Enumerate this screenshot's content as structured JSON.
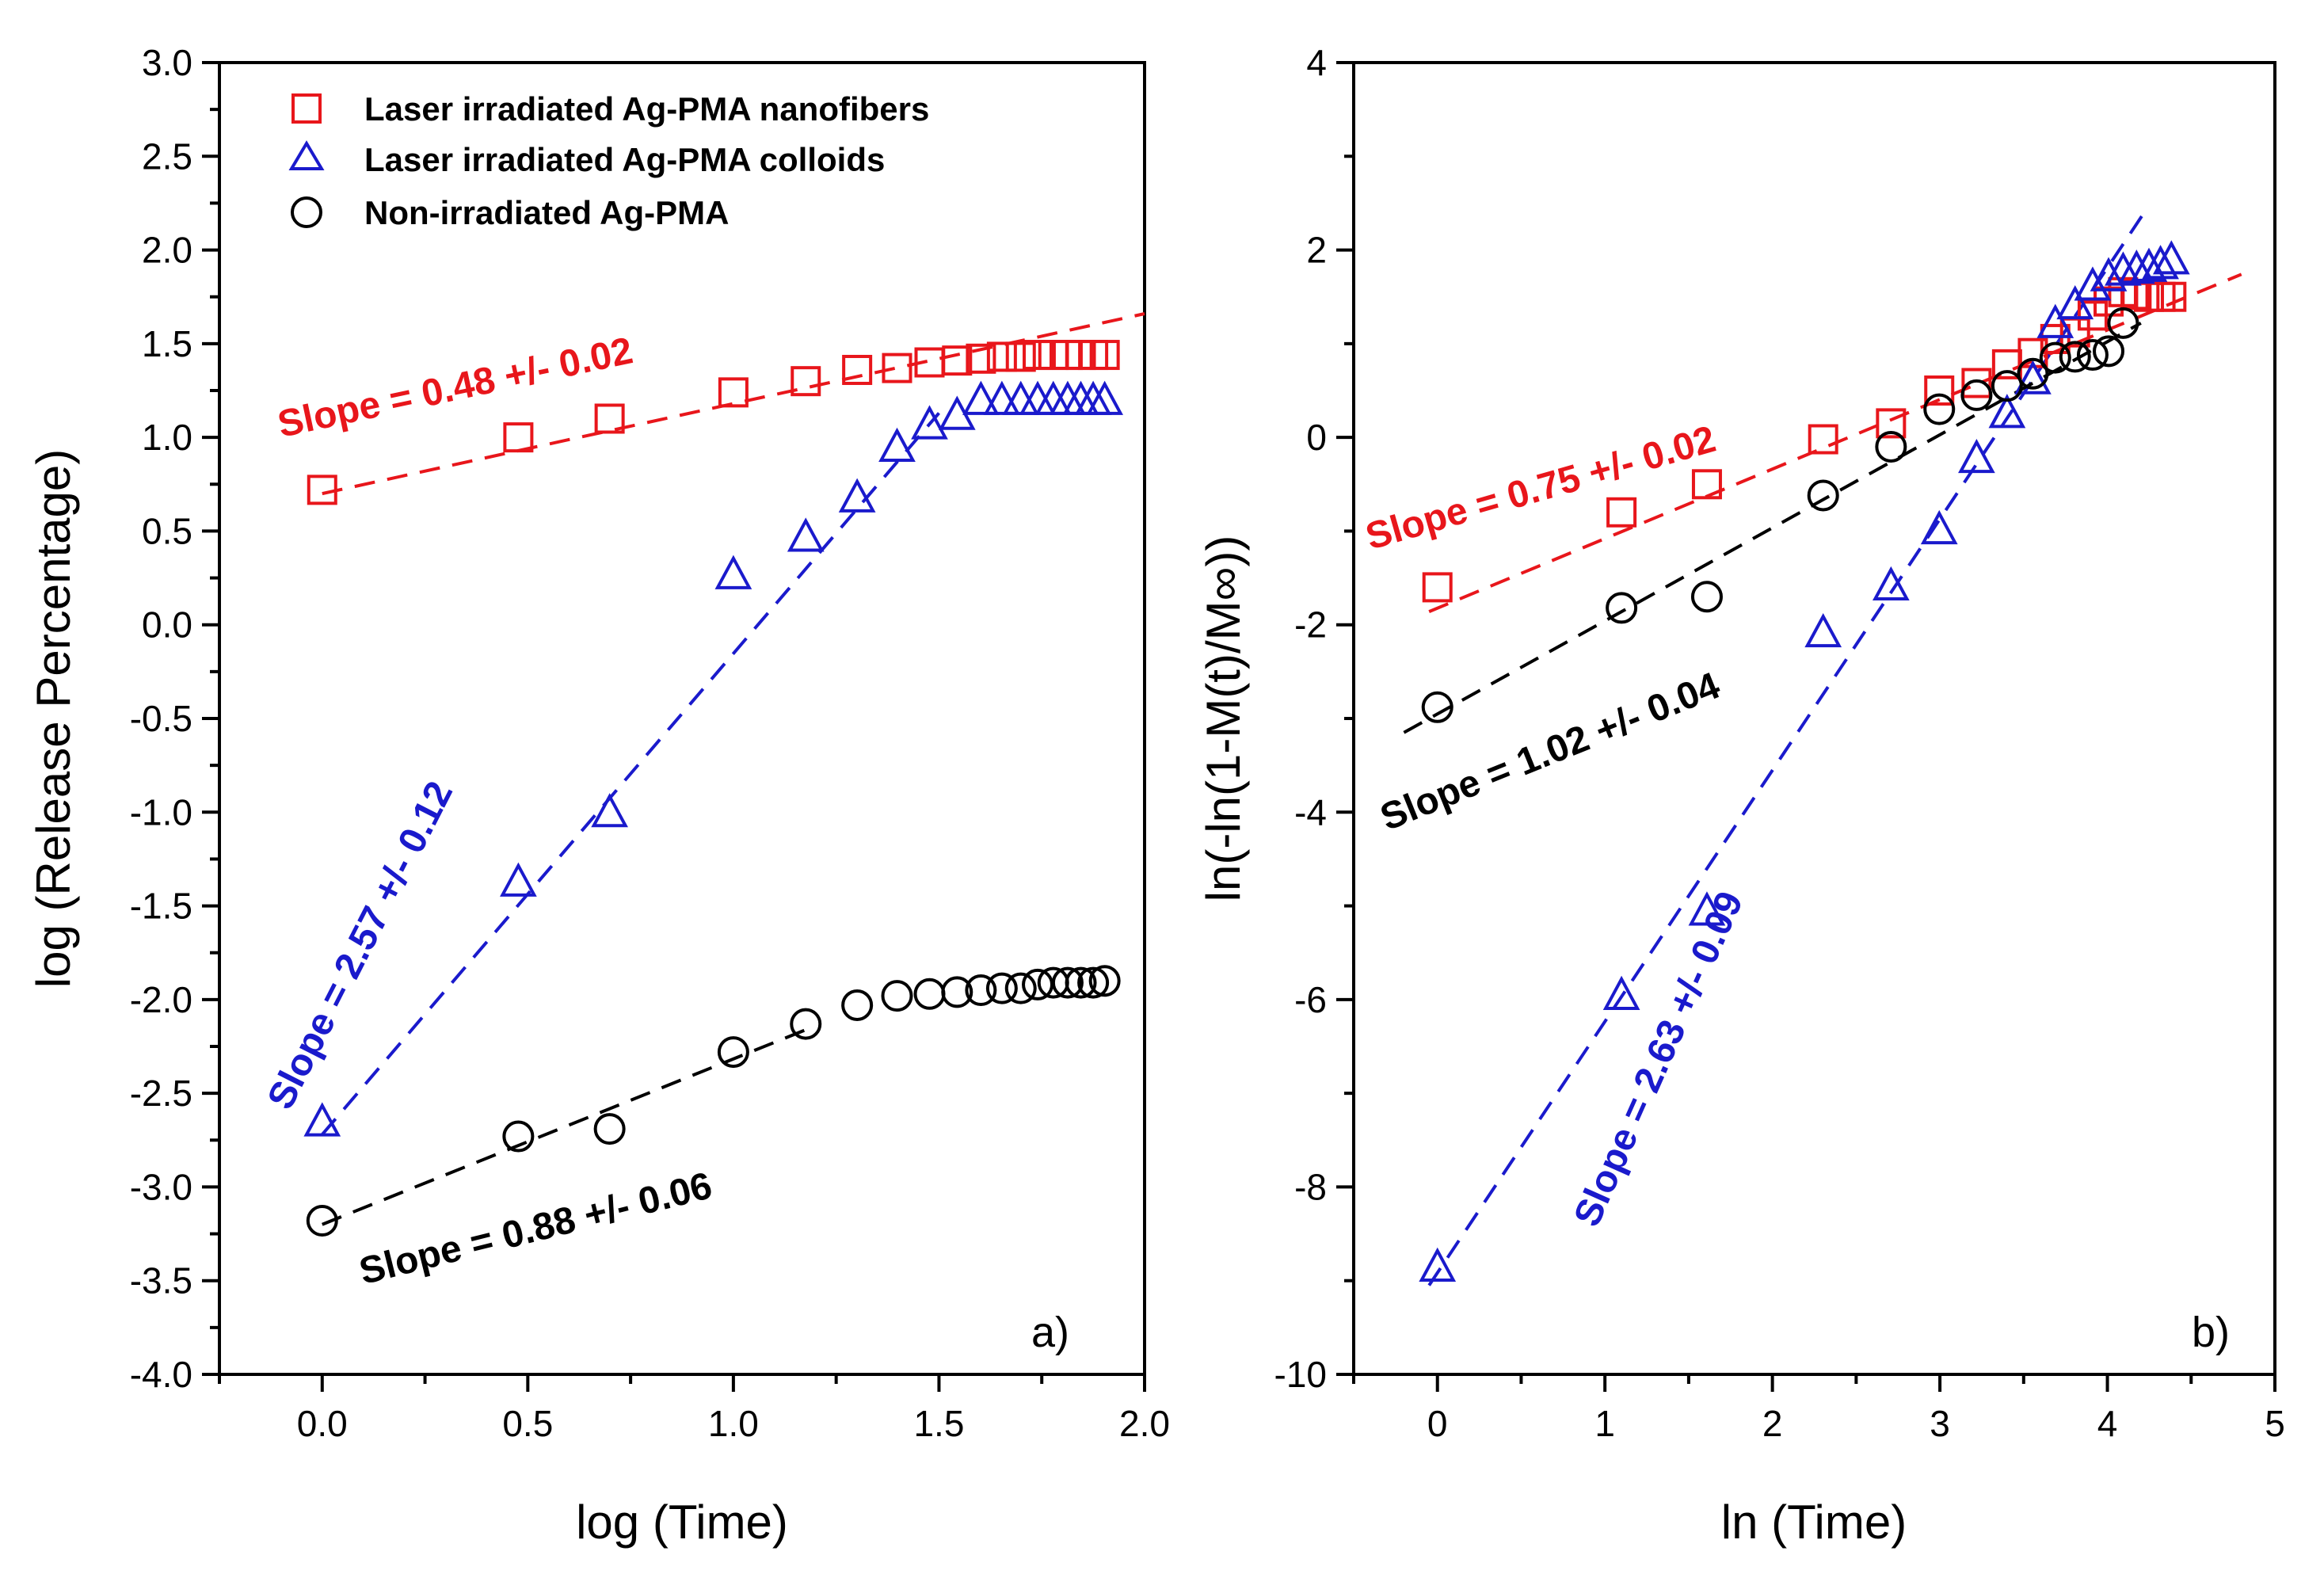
{
  "chart_data": [
    {
      "type": "scatter",
      "panel_label": "a)",
      "xlabel": "log (Time)",
      "ylabel": "log (Release Percentage)",
      "xlim": [
        -0.25,
        2.0
      ],
      "ylim": [
        -4.0,
        3.0
      ],
      "xticks": [
        "0.0",
        "0.5",
        "1.0",
        "1.5",
        "2.0"
      ],
      "yticks": [
        "-4.0",
        "-3.5",
        "-3.0",
        "-2.5",
        "-2.0",
        "-1.5",
        "-1.0",
        "-0.5",
        "0.0",
        "0.5",
        "1.0",
        "1.5",
        "2.0",
        "2.5",
        "3.0"
      ],
      "legend": [
        {
          "label": "Laser irradiated Ag-PMA nanofibers",
          "marker": "square",
          "color": "#e8161b"
        },
        {
          "label": "Laser irradiated Ag-PMA colloids",
          "marker": "triangle",
          "color": "#1a1acc"
        },
        {
          "label": "Non-irradiated Ag-PMA",
          "marker": "circle",
          "color": "#000000"
        }
      ],
      "series": [
        {
          "name": "Laser irradiated Ag-PMA nanofibers",
          "marker": "square",
          "color": "#e8161b",
          "x": [
            0.0,
            0.477,
            0.699,
            1.0,
            1.176,
            1.301,
            1.398,
            1.477,
            1.544,
            1.602,
            1.653,
            1.699,
            1.74,
            1.778,
            1.813,
            1.845,
            1.875,
            1.903
          ],
          "y": [
            0.72,
            1.0,
            1.1,
            1.24,
            1.3,
            1.36,
            1.37,
            1.4,
            1.41,
            1.42,
            1.43,
            1.43,
            1.44,
            1.44,
            1.44,
            1.44,
            1.44,
            1.44
          ],
          "fit": {
            "x": [
              0.0,
              2.0
            ],
            "y": [
              0.7,
              1.66
            ]
          },
          "annotation": {
            "text": "Slope = 0.48 +/- 0.02",
            "x": -0.1,
            "y": 1.0,
            "angle": -12
          }
        },
        {
          "name": "Laser irradiated Ag-PMA colloids",
          "marker": "triangle",
          "color": "#1a1acc",
          "x": [
            0.0,
            0.477,
            0.699,
            1.0,
            1.176,
            1.301,
            1.398,
            1.477,
            1.544,
            1.602,
            1.653,
            1.699,
            1.74,
            1.778,
            1.813,
            1.845,
            1.875,
            1.903
          ],
          "y": [
            -2.65,
            -1.37,
            -1.0,
            0.27,
            0.47,
            0.68,
            0.95,
            1.07,
            1.12,
            1.2,
            1.2,
            1.2,
            1.2,
            1.2,
            1.2,
            1.2,
            1.2,
            1.2
          ],
          "fit": {
            "x": [
              0.0,
              1.5
            ],
            "y": [
              -2.72,
              1.13
            ]
          },
          "annotation": {
            "text": "Slope = 2.57 +/- 0.12",
            "x": -0.08,
            "y": -2.6,
            "angle": -63
          }
        },
        {
          "name": "Non-irradiated Ag-PMA",
          "marker": "circle",
          "color": "#000000",
          "x": [
            0.0,
            0.477,
            0.699,
            1.0,
            1.176,
            1.301,
            1.398,
            1.477,
            1.544,
            1.602,
            1.653,
            1.699,
            1.74,
            1.778,
            1.813,
            1.845,
            1.875,
            1.903
          ],
          "y": [
            -3.18,
            -2.73,
            -2.69,
            -2.28,
            -2.13,
            -2.03,
            -1.98,
            -1.97,
            -1.96,
            -1.95,
            -1.94,
            -1.94,
            -1.92,
            -1.91,
            -1.91,
            -1.91,
            -1.91,
            -1.9
          ],
          "fit": {
            "x": [
              0.0,
              1.2
            ],
            "y": [
              -3.2,
              -2.14
            ]
          },
          "annotation": {
            "text": "Slope = 0.88 +/- 0.06",
            "x": 0.1,
            "y": -3.52,
            "angle": -14
          }
        }
      ]
    },
    {
      "type": "scatter",
      "panel_label": "b)",
      "xlabel": "ln (Time)",
      "ylabel": "ln(-ln(1-M(t)/M∞))",
      "xlim": [
        -0.5,
        5.0
      ],
      "ylim": [
        -10,
        4
      ],
      "xticks": [
        "0",
        "1",
        "2",
        "3",
        "4",
        "5"
      ],
      "yticks": [
        "-10",
        "-8",
        "-6",
        "-4",
        "-2",
        "0",
        "2",
        "4"
      ],
      "series": [
        {
          "name": "Laser irradiated Ag-PMA nanofibers",
          "marker": "square",
          "color": "#e8161b",
          "x": [
            0.0,
            1.099,
            1.609,
            2.303,
            2.708,
            2.996,
            3.219,
            3.401,
            3.555,
            3.689,
            3.807,
            3.912,
            4.007,
            4.094,
            4.174,
            4.248,
            4.317,
            4.382
          ],
          "y": [
            -1.6,
            -0.8,
            -0.5,
            -0.02,
            0.15,
            0.5,
            0.58,
            0.78,
            0.9,
            1.05,
            1.12,
            1.3,
            1.45,
            1.55,
            1.52,
            1.5,
            1.5,
            1.5
          ],
          "fit": {
            "x": [
              -0.05,
              4.8
            ],
            "y": [
              -1.86,
              1.74
            ]
          },
          "annotation": {
            "text": "Slope = 0.75 +/- 0.02",
            "x": -0.4,
            "y": -1.2,
            "angle": -16
          }
        },
        {
          "name": "Laser irradiated Ag-PMA colloids",
          "marker": "triangle",
          "color": "#1a1acc",
          "x": [
            0.0,
            1.099,
            1.609,
            2.303,
            2.708,
            2.996,
            3.219,
            3.401,
            3.555,
            3.689,
            3.807,
            3.912,
            4.007,
            4.094,
            4.174,
            4.248,
            4.317,
            4.382
          ],
          "y": [
            -8.85,
            -5.95,
            -5.05,
            -2.08,
            -1.58,
            -0.98,
            -0.22,
            0.26,
            0.62,
            1.22,
            1.42,
            1.62,
            1.72,
            1.78,
            1.8,
            1.82,
            1.85,
            1.9
          ],
          "fit": {
            "x": [
              -0.05,
              4.22
            ],
            "y": [
              -9.05,
              2.4
            ]
          },
          "annotation": {
            "text": "Slope = 2.63 +/- 0.09",
            "x": 0.95,
            "y": -8.45,
            "angle": -66
          }
        },
        {
          "name": "Non-irradiated Ag-PMA",
          "marker": "circle",
          "color": "#000000",
          "x": [
            0.0,
            1.099,
            1.609,
            2.303,
            2.708,
            2.996,
            3.219,
            3.401,
            3.555,
            3.689,
            3.807,
            3.912,
            4.007,
            4.094
          ],
          "y": [
            -2.88,
            -1.82,
            -1.7,
            -0.62,
            -0.1,
            0.3,
            0.45,
            0.55,
            0.68,
            0.85,
            0.86,
            0.88,
            0.92,
            1.22
          ],
          "fit": {
            "x": [
              -0.2,
              4.2
            ],
            "y": [
              -3.15,
              1.22
            ]
          },
          "annotation": {
            "text": "Slope = 1.02 +/- 0.04",
            "x": -0.3,
            "y": -4.2,
            "angle": -22
          }
        }
      ]
    }
  ]
}
